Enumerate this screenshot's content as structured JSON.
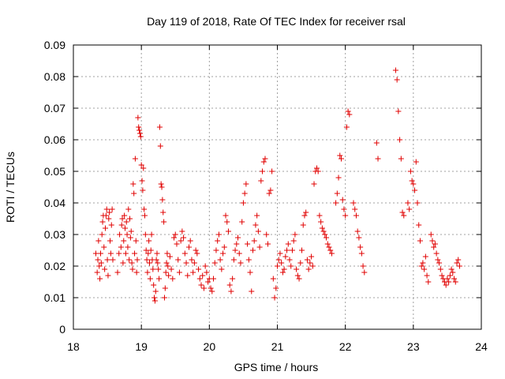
{
  "chart_data": {
    "type": "scatter",
    "title": "Day 119 of 2018, Rate Of TEC Index for receiver rsal",
    "xlabel": "GPS time / hours",
    "ylabel": "ROTI / TECUs",
    "xlim": [
      18,
      24
    ],
    "ylim": [
      0,
      0.09
    ],
    "grid": true,
    "marker": "+",
    "color": "#e00000",
    "x_ticks": [
      18,
      19,
      20,
      21,
      22,
      23,
      24
    ],
    "x_tick_labels": [
      "18",
      "19",
      "20",
      "21",
      "22",
      "23",
      "24"
    ],
    "y_ticks": [
      0,
      0.01,
      0.02,
      0.03,
      0.04,
      0.05,
      0.06,
      0.07,
      0.08,
      0.09
    ],
    "y_tick_labels": [
      "0",
      "0.01",
      "0.02",
      "0.03",
      "0.04",
      "0.05",
      "0.06",
      "0.07",
      "0.08",
      "0.09"
    ],
    "series": [
      {
        "name": "ROTI",
        "points": [
          [
            18.33,
            0.024
          ],
          [
            18.35,
            0.018
          ],
          [
            18.36,
            0.022
          ],
          [
            18.37,
            0.028
          ],
          [
            18.38,
            0.02
          ],
          [
            18.39,
            0.016
          ],
          [
            18.4,
            0.024
          ],
          [
            18.41,
            0.021
          ],
          [
            18.42,
            0.03
          ],
          [
            18.43,
            0.034
          ],
          [
            18.44,
            0.036
          ],
          [
            18.45,
            0.026
          ],
          [
            18.46,
            0.019
          ],
          [
            18.47,
            0.032
          ],
          [
            18.48,
            0.036
          ],
          [
            18.49,
            0.038
          ],
          [
            18.5,
            0.022
          ],
          [
            18.51,
            0.017
          ],
          [
            18.52,
            0.035
          ],
          [
            18.53,
            0.037
          ],
          [
            18.54,
            0.028
          ],
          [
            18.55,
            0.024
          ],
          [
            18.56,
            0.033
          ],
          [
            18.57,
            0.038
          ],
          [
            18.58,
            0.022
          ],
          [
            18.65,
            0.018
          ],
          [
            18.67,
            0.024
          ],
          [
            18.68,
            0.03
          ],
          [
            18.7,
            0.026
          ],
          [
            18.71,
            0.033
          ],
          [
            18.72,
            0.035
          ],
          [
            18.73,
            0.021
          ],
          [
            18.74,
            0.028
          ],
          [
            18.75,
            0.036
          ],
          [
            18.76,
            0.032
          ],
          [
            18.77,
            0.024
          ],
          [
            18.78,
            0.034
          ],
          [
            18.79,
            0.03
          ],
          [
            18.8,
            0.026
          ],
          [
            18.81,
            0.038
          ],
          [
            18.82,
            0.022
          ],
          [
            18.83,
            0.035
          ],
          [
            18.84,
            0.029
          ],
          [
            18.85,
            0.031
          ],
          [
            18.86,
            0.021
          ],
          [
            18.87,
            0.019
          ],
          [
            18.88,
            0.046
          ],
          [
            18.89,
            0.043
          ],
          [
            18.9,
            0.024
          ],
          [
            18.91,
            0.054
          ],
          [
            18.92,
            0.028
          ],
          [
            18.93,
            0.018
          ],
          [
            18.94,
            0.022
          ],
          [
            18.95,
            0.067
          ],
          [
            18.96,
            0.064
          ],
          [
            18.97,
            0.063
          ],
          [
            18.98,
            0.062
          ],
          [
            18.99,
            0.061
          ],
          [
            19.0,
            0.052
          ],
          [
            19.01,
            0.047
          ],
          [
            19.02,
            0.044
          ],
          [
            19.03,
            0.051
          ],
          [
            19.04,
            0.038
          ],
          [
            19.05,
            0.036
          ],
          [
            19.06,
            0.03
          ],
          [
            19.07,
            0.025
          ],
          [
            19.08,
            0.022
          ],
          [
            19.09,
            0.018
          ],
          [
            19.1,
            0.024
          ],
          [
            19.11,
            0.028
          ],
          [
            19.12,
            0.021
          ],
          [
            19.13,
            0.016
          ],
          [
            19.14,
            0.025
          ],
          [
            19.15,
            0.03
          ],
          [
            19.16,
            0.022
          ],
          [
            19.17,
            0.019
          ],
          [
            19.18,
            0.014
          ],
          [
            19.19,
            0.01
          ],
          [
            19.2,
            0.009
          ],
          [
            19.21,
            0.012
          ],
          [
            19.22,
            0.022
          ],
          [
            19.23,
            0.024
          ],
          [
            19.24,
            0.021
          ],
          [
            19.25,
            0.019
          ],
          [
            19.26,
            0.016
          ],
          [
            19.27,
            0.064
          ],
          [
            19.28,
            0.058
          ],
          [
            19.29,
            0.046
          ],
          [
            19.3,
            0.045
          ],
          [
            19.31,
            0.041
          ],
          [
            19.32,
            0.037
          ],
          [
            19.33,
            0.034
          ],
          [
            19.34,
            0.01
          ],
          [
            19.35,
            0.013
          ],
          [
            19.36,
            0.018
          ],
          [
            19.37,
            0.021
          ],
          [
            19.38,
            0.024
          ],
          [
            19.39,
            0.02
          ],
          [
            19.4,
            0.017
          ],
          [
            19.42,
            0.023
          ],
          [
            19.44,
            0.019
          ],
          [
            19.46,
            0.016
          ],
          [
            19.48,
            0.029
          ],
          [
            19.5,
            0.03
          ],
          [
            19.52,
            0.027
          ],
          [
            19.54,
            0.022
          ],
          [
            19.56,
            0.018
          ],
          [
            19.58,
            0.028
          ],
          [
            19.6,
            0.031
          ],
          [
            19.62,
            0.029
          ],
          [
            19.64,
            0.024
          ],
          [
            19.66,
            0.021
          ],
          [
            19.68,
            0.017
          ],
          [
            19.7,
            0.026
          ],
          [
            19.72,
            0.028
          ],
          [
            19.74,
            0.022
          ],
          [
            19.76,
            0.018
          ],
          [
            19.78,
            0.021
          ],
          [
            19.8,
            0.025
          ],
          [
            19.82,
            0.024
          ],
          [
            19.84,
            0.019
          ],
          [
            19.86,
            0.016
          ],
          [
            19.88,
            0.014
          ],
          [
            19.9,
            0.017
          ],
          [
            19.92,
            0.013
          ],
          [
            19.94,
            0.02
          ],
          [
            19.96,
            0.018
          ],
          [
            19.98,
            0.015
          ],
          [
            20.0,
            0.016
          ],
          [
            20.02,
            0.013
          ],
          [
            20.04,
            0.012
          ],
          [
            20.06,
            0.016
          ],
          [
            20.08,
            0.021
          ],
          [
            20.1,
            0.025
          ],
          [
            20.12,
            0.028
          ],
          [
            20.14,
            0.03
          ],
          [
            20.16,
            0.022
          ],
          [
            20.18,
            0.019
          ],
          [
            20.2,
            0.024
          ],
          [
            20.22,
            0.026
          ],
          [
            20.24,
            0.036
          ],
          [
            20.26,
            0.034
          ],
          [
            20.28,
            0.031
          ],
          [
            20.3,
            0.014
          ],
          [
            20.32,
            0.012
          ],
          [
            20.34,
            0.016
          ],
          [
            20.36,
            0.022
          ],
          [
            20.38,
            0.025
          ],
          [
            20.4,
            0.027
          ],
          [
            20.42,
            0.029
          ],
          [
            20.44,
            0.024
          ],
          [
            20.46,
            0.021
          ],
          [
            20.48,
            0.034
          ],
          [
            20.5,
            0.04
          ],
          [
            20.52,
            0.043
          ],
          [
            20.54,
            0.046
          ],
          [
            20.56,
            0.027
          ],
          [
            20.58,
            0.022
          ],
          [
            20.6,
            0.018
          ],
          [
            20.62,
            0.012
          ],
          [
            20.64,
            0.025
          ],
          [
            20.66,
            0.028
          ],
          [
            20.68,
            0.033
          ],
          [
            20.7,
            0.036
          ],
          [
            20.72,
            0.031
          ],
          [
            20.74,
            0.026
          ],
          [
            20.76,
            0.047
          ],
          [
            20.78,
            0.05
          ],
          [
            20.8,
            0.053
          ],
          [
            20.82,
            0.054
          ],
          [
            20.84,
            0.03
          ],
          [
            20.86,
            0.027
          ],
          [
            20.88,
            0.043
          ],
          [
            20.9,
            0.044
          ],
          [
            20.92,
            0.05
          ],
          [
            20.94,
            0.016
          ],
          [
            20.96,
            0.01
          ],
          [
            20.98,
            0.013
          ],
          [
            21.0,
            0.02
          ],
          [
            21.02,
            0.022
          ],
          [
            21.04,
            0.024
          ],
          [
            21.06,
            0.021
          ],
          [
            21.08,
            0.018
          ],
          [
            21.1,
            0.019
          ],
          [
            21.12,
            0.023
          ],
          [
            21.14,
            0.025
          ],
          [
            21.16,
            0.027
          ],
          [
            21.18,
            0.022
          ],
          [
            21.2,
            0.02
          ],
          [
            21.22,
            0.025
          ],
          [
            21.24,
            0.028
          ],
          [
            21.26,
            0.03
          ],
          [
            21.28,
            0.019
          ],
          [
            21.3,
            0.017
          ],
          [
            21.32,
            0.016
          ],
          [
            21.34,
            0.021
          ],
          [
            21.36,
            0.025
          ],
          [
            21.38,
            0.033
          ],
          [
            21.4,
            0.036
          ],
          [
            21.42,
            0.037
          ],
          [
            21.44,
            0.022
          ],
          [
            21.46,
            0.019
          ],
          [
            21.48,
            0.021
          ],
          [
            21.5,
            0.023
          ],
          [
            21.52,
            0.02
          ],
          [
            21.54,
            0.046
          ],
          [
            21.56,
            0.05
          ],
          [
            21.58,
            0.051
          ],
          [
            21.6,
            0.05
          ],
          [
            21.62,
            0.036
          ],
          [
            21.64,
            0.034
          ],
          [
            21.66,
            0.032
          ],
          [
            21.68,
            0.031
          ],
          [
            21.7,
            0.03
          ],
          [
            21.72,
            0.029
          ],
          [
            21.74,
            0.027
          ],
          [
            21.76,
            0.026
          ],
          [
            21.78,
            0.025
          ],
          [
            21.8,
            0.024
          ],
          [
            21.86,
            0.04
          ],
          [
            21.88,
            0.043
          ],
          [
            21.9,
            0.048
          ],
          [
            21.92,
            0.055
          ],
          [
            21.94,
            0.054
          ],
          [
            21.96,
            0.041
          ],
          [
            21.98,
            0.038
          ],
          [
            22.0,
            0.036
          ],
          [
            22.02,
            0.064
          ],
          [
            22.04,
            0.069
          ],
          [
            22.06,
            0.068
          ],
          [
            22.12,
            0.04
          ],
          [
            22.14,
            0.038
          ],
          [
            22.16,
            0.036
          ],
          [
            22.18,
            0.031
          ],
          [
            22.2,
            0.029
          ],
          [
            22.22,
            0.026
          ],
          [
            22.24,
            0.024
          ],
          [
            22.26,
            0.02
          ],
          [
            22.28,
            0.018
          ],
          [
            22.46,
            0.059
          ],
          [
            22.48,
            0.054
          ],
          [
            22.74,
            0.082
          ],
          [
            22.76,
            0.079
          ],
          [
            22.78,
            0.069
          ],
          [
            22.8,
            0.06
          ],
          [
            22.82,
            0.054
          ],
          [
            22.84,
            0.037
          ],
          [
            22.86,
            0.036
          ],
          [
            22.92,
            0.04
          ],
          [
            22.94,
            0.038
          ],
          [
            22.96,
            0.05
          ],
          [
            22.98,
            0.047
          ],
          [
            23.0,
            0.046
          ],
          [
            23.02,
            0.044
          ],
          [
            23.04,
            0.053
          ],
          [
            23.06,
            0.04
          ],
          [
            23.08,
            0.033
          ],
          [
            23.1,
            0.028
          ],
          [
            23.12,
            0.02
          ],
          [
            23.14,
            0.021
          ],
          [
            23.16,
            0.019
          ],
          [
            23.18,
            0.023
          ],
          [
            23.2,
            0.017
          ],
          [
            23.22,
            0.015
          ],
          [
            23.26,
            0.03
          ],
          [
            23.28,
            0.028
          ],
          [
            23.3,
            0.026
          ],
          [
            23.32,
            0.027
          ],
          [
            23.34,
            0.024
          ],
          [
            23.36,
            0.022
          ],
          [
            23.38,
            0.021
          ],
          [
            23.4,
            0.019
          ],
          [
            23.42,
            0.017
          ],
          [
            23.44,
            0.016
          ],
          [
            23.46,
            0.015
          ],
          [
            23.48,
            0.014
          ],
          [
            23.5,
            0.016
          ],
          [
            23.52,
            0.015
          ],
          [
            23.54,
            0.017
          ],
          [
            23.56,
            0.019
          ],
          [
            23.58,
            0.018
          ],
          [
            23.6,
            0.016
          ],
          [
            23.62,
            0.015
          ],
          [
            23.64,
            0.021
          ],
          [
            23.66,
            0.022
          ],
          [
            23.68,
            0.02
          ]
        ]
      }
    ]
  }
}
